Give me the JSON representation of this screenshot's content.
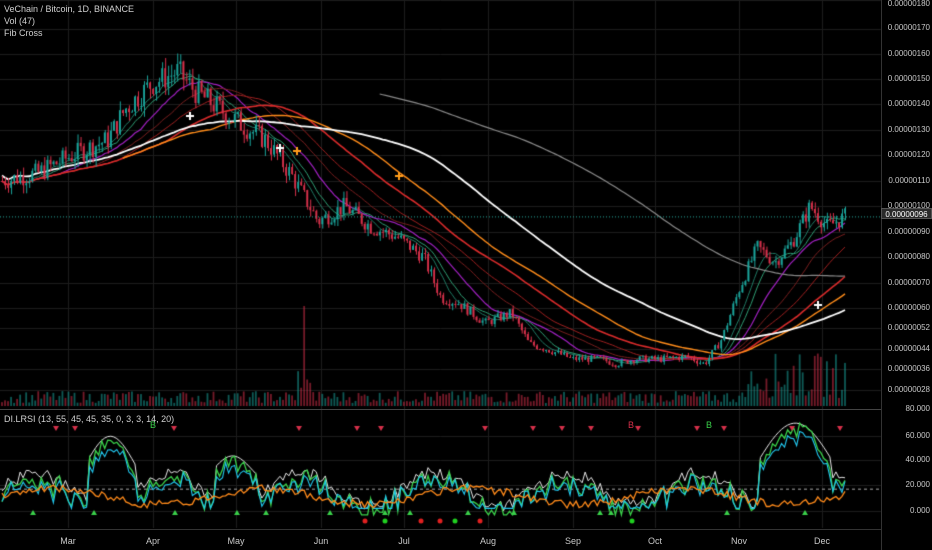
{
  "legend": {
    "pair": "VeChain / Bitcoin, 1D, BINANCE",
    "vol": "Vol (47)",
    "fib": "Fib Cross",
    "indicator": "DI.LRSI (13, 55, 45, 45, 35, 0, 3, 3, 14, 20)"
  },
  "current_price": "0.00000096",
  "colors": {
    "bg": "#000000",
    "up": "#1aa39a",
    "down": "#d6304a",
    "ma_white": "#ffffff",
    "ma_gray": "#8a8a8a",
    "ma_red": "#d92b2b",
    "ma_orange": "#ff8c1a",
    "ma_purple": "#a020c0",
    "lrsi_green": "#3ad14a",
    "lrsi_cyan": "#21c8f0",
    "lrsi_orange": "#ff8a1a"
  },
  "time_axis": [
    "Mar",
    "Apr",
    "May",
    "Jun",
    "Jul",
    "Aug",
    "Sep",
    "Oct",
    "Nov",
    "Dec"
  ],
  "price_axis": [
    "0.00000180",
    "0.00000170",
    "0.00000160",
    "0.00000150",
    "0.00000140",
    "0.00000130",
    "0.00000120",
    "0.00000110",
    "0.00000100",
    "0.00000090",
    "0.00000080",
    "0.00000070",
    "0.00000060",
    "0.00000052",
    "0.00000044",
    "0.00000036",
    "0.00000028",
    "80.000"
  ],
  "indicator_axis": [
    "60.000",
    "40.000",
    "20.000",
    "0.000"
  ],
  "signal_letters": [
    "B",
    "B",
    "B"
  ],
  "chart_data": {
    "type": "candlestick",
    "title": "VeChain / Bitcoin, 1D, BINANCE",
    "y_range": [
      2.2e-07,
      1.82e-06
    ],
    "price_path": [
      [
        0,
        1.1e-06
      ],
      [
        4,
        1.13e-06
      ],
      [
        8,
        1.2e-06
      ],
      [
        12,
        1.26e-06
      ],
      [
        14,
        1.38e-06
      ],
      [
        17,
        1.48e-06
      ],
      [
        20,
        1.53e-06
      ],
      [
        22,
        1.45e-06
      ],
      [
        26,
        1.35e-06
      ],
      [
        30,
        1.26e-06
      ],
      [
        33,
        1.12e-06
      ],
      [
        36,
        9.4e-07
      ],
      [
        39,
        1e-06
      ],
      [
        42,
        9.2e-07
      ],
      [
        45,
        8.8e-07
      ],
      [
        48,
        8e-07
      ],
      [
        50,
        6.4e-07
      ],
      [
        52,
        6.2e-07
      ],
      [
        55,
        5.4e-07
      ],
      [
        58,
        5.8e-07
      ],
      [
        60,
        4.6e-07
      ],
      [
        62,
        4.4e-07
      ],
      [
        65,
        4e-07
      ],
      [
        68,
        4e-07
      ],
      [
        70,
        3.8e-07
      ],
      [
        72,
        4e-07
      ],
      [
        75,
        4e-07
      ],
      [
        78,
        4.1e-07
      ],
      [
        80,
        3.8e-07
      ],
      [
        82,
        4.8e-07
      ],
      [
        84,
        6.8e-07
      ],
      [
        86,
        8.4e-07
      ],
      [
        88,
        7.8e-07
      ],
      [
        90,
        8.6e-07
      ],
      [
        92,
        1e-06
      ],
      [
        94,
        9.2e-07
      ],
      [
        96,
        9.6e-07
      ]
    ],
    "indicator_range": [
      -10,
      80
    ]
  }
}
